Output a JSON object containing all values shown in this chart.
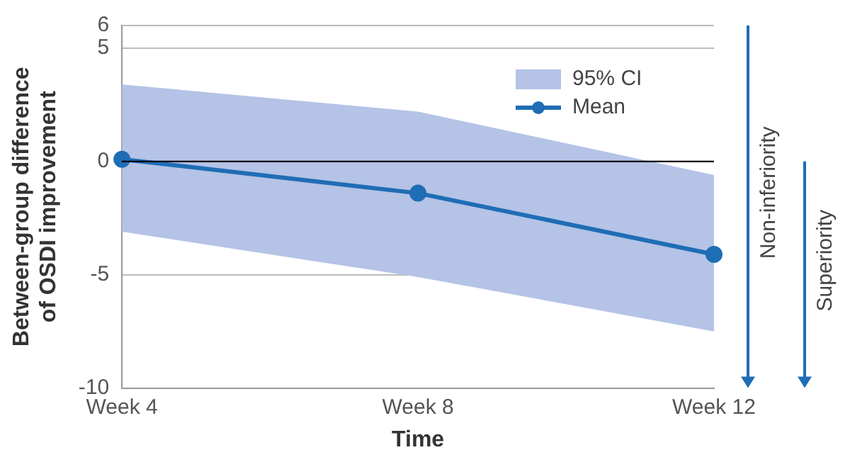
{
  "chart_data": {
    "type": "line",
    "xlabel": "Time",
    "ylabel": "Between-group difference\nof OSDI improvement",
    "categories": [
      "Week 4",
      "Week 8",
      "Week 12"
    ],
    "series": [
      {
        "name": "Mean",
        "type": "line",
        "color": "#1f6db5",
        "values": [
          0.1,
          -1.4,
          -4.1
        ],
        "lower": [
          -3.1,
          -5.1,
          -7.5
        ],
        "upper": [
          3.4,
          2.2,
          -0.6
        ]
      }
    ],
    "ylim": [
      -10,
      6
    ],
    "yticks": [
      -10,
      -5,
      0,
      5,
      6
    ],
    "grid": "y",
    "legend": "top right",
    "marker": "circle",
    "line_style": "solid",
    "ref_lines": [
      {
        "axis": "y",
        "value": 0,
        "color": "#000000"
      }
    ],
    "annotations": [
      "95% CI",
      "Non-inferiority",
      "Superiority"
    ]
  }
}
